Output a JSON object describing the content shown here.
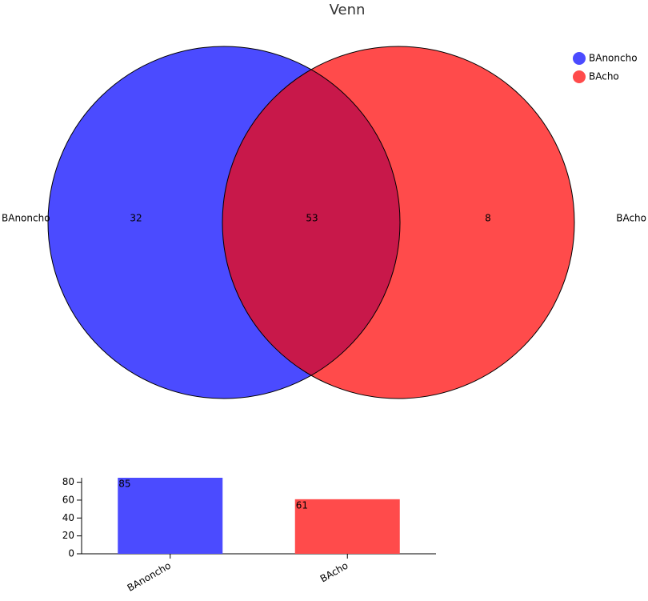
{
  "chart_data": [
    {
      "type": "venn",
      "title": "Venn",
      "sets": [
        {
          "name": "BAnoncho",
          "color": "#4b4bff"
        },
        {
          "name": "BAcho",
          "color": "#ff4b4b"
        }
      ],
      "values": [
        32,
        53,
        8
      ],
      "overlap_color": "#c8184a",
      "legend": "top-right"
    },
    {
      "type": "bar",
      "categories": [
        "BAnoncho",
        "BAcho"
      ],
      "values": [
        85,
        61
      ],
      "colors": [
        "#4b4bff",
        "#ff4b4b"
      ],
      "ylim": [
        0,
        85
      ],
      "yticks": [
        0,
        20,
        40,
        60,
        80
      ]
    }
  ]
}
